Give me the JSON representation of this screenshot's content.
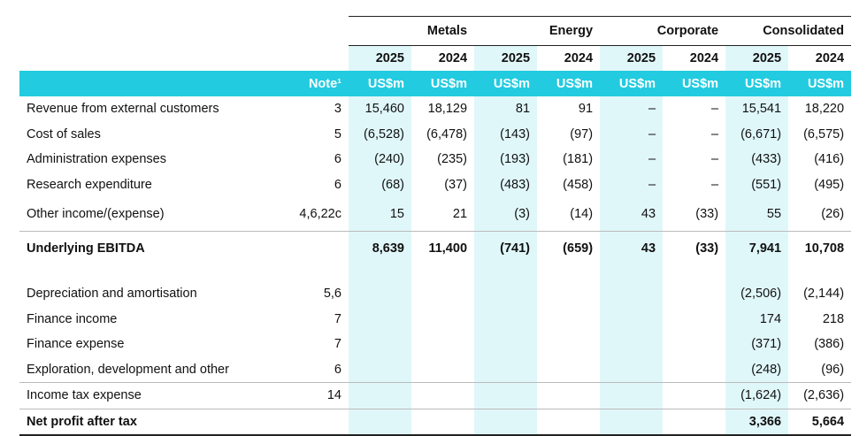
{
  "header": {
    "groups": [
      "Metals",
      "Energy",
      "Corporate",
      "Consolidated"
    ],
    "years": [
      "2025",
      "2024",
      "2025",
      "2024",
      "2025",
      "2024",
      "2025",
      "2024"
    ],
    "note_label": "Note¹",
    "unit": "US$m"
  },
  "rows": [
    {
      "label": "Revenue from external customers",
      "note": "3",
      "values": [
        "15,460",
        "18,129",
        "81",
        "91",
        "–",
        "–",
        "15,541",
        "18,220"
      ]
    },
    {
      "label": "Cost of sales",
      "note": "5",
      "values": [
        "(6,528)",
        "(6,478)",
        "(143)",
        "(97)",
        "–",
        "–",
        "(6,671)",
        "(6,575)"
      ]
    },
    {
      "label": "Administration expenses",
      "note": "6",
      "values": [
        "(240)",
        "(235)",
        "(193)",
        "(181)",
        "–",
        "–",
        "(433)",
        "(416)"
      ]
    },
    {
      "label": "Research expenditure",
      "note": "6",
      "values": [
        "(68)",
        "(37)",
        "(483)",
        "(458)",
        "–",
        "–",
        "(551)",
        "(495)"
      ]
    },
    {
      "label": "Other income/(expense)",
      "note": "4,6,22c",
      "values": [
        "15",
        "21",
        "(3)",
        "(14)",
        "43",
        "(33)",
        "55",
        "(26)"
      ]
    },
    {
      "label": "Underlying EBITDA",
      "note": "",
      "values": [
        "8,639",
        "11,400",
        "(741)",
        "(659)",
        "43",
        "(33)",
        "7,941",
        "10,708"
      ]
    },
    {
      "label": "Depreciation and amortisation",
      "note": "5,6",
      "values": [
        "",
        "",
        "",
        "",
        "",
        "",
        "(2,506)",
        "(2,144)"
      ]
    },
    {
      "label": "Finance income",
      "note": "7",
      "values": [
        "",
        "",
        "",
        "",
        "",
        "",
        "174",
        "218"
      ]
    },
    {
      "label": "Finance expense",
      "note": "7",
      "values": [
        "",
        "",
        "",
        "",
        "",
        "",
        "(371)",
        "(386)"
      ]
    },
    {
      "label": "Exploration, development and other",
      "note": "6",
      "values": [
        "",
        "",
        "",
        "",
        "",
        "",
        "(248)",
        "(96)"
      ]
    },
    {
      "label": "Income tax expense",
      "note": "14",
      "values": [
        "",
        "",
        "",
        "",
        "",
        "",
        "(1,624)",
        "(2,636)"
      ]
    },
    {
      "label": "Net profit after tax",
      "note": "",
      "values": [
        "",
        "",
        "",
        "",
        "",
        "",
        "3,366",
        "5,664"
      ]
    }
  ]
}
